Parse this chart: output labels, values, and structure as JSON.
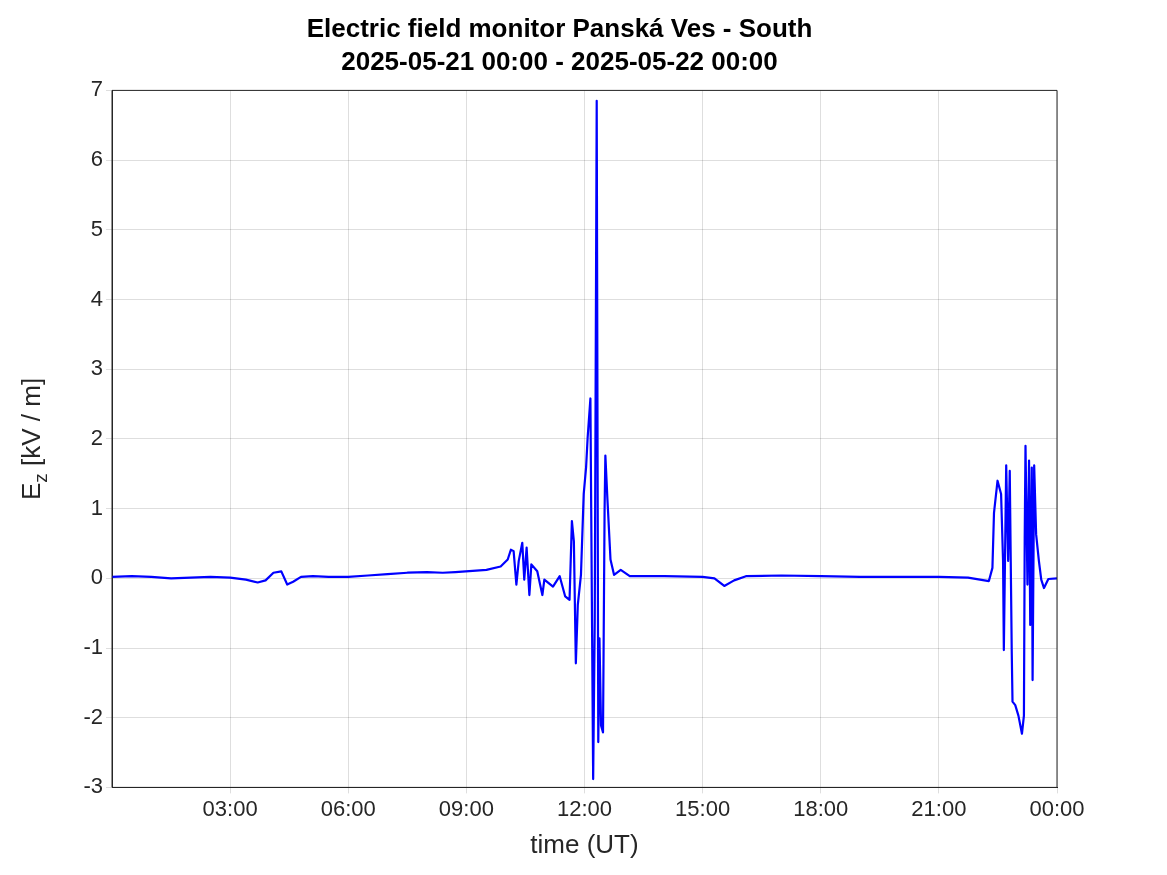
{
  "chart_data": {
    "type": "line",
    "title": "Electric field monitor Panská Ves - South",
    "subtitle": "2025-05-21 00:00 - 2025-05-22 00:00",
    "xlabel": "time (UT)",
    "ylabel": "E$_{z}$ [kV / m]",
    "xlim": [
      0,
      24
    ],
    "xticks": [
      {
        "value": 3,
        "label": "03:00"
      },
      {
        "value": 6,
        "label": "06:00"
      },
      {
        "value": 9,
        "label": "09:00"
      },
      {
        "value": 12,
        "label": "12:00"
      },
      {
        "value": 15,
        "label": "15:00"
      },
      {
        "value": 18,
        "label": "18:00"
      },
      {
        "value": 21,
        "label": "21:00"
      },
      {
        "value": 24,
        "label": "00:00"
      }
    ],
    "ylim": [
      -3,
      7
    ],
    "yticks": [
      -3,
      -2,
      -1,
      0,
      1,
      2,
      3,
      4,
      5,
      6,
      7
    ],
    "grid": true,
    "legend": false,
    "marker": "none",
    "line_style": "solid",
    "series": [
      {
        "color": "#0000ff",
        "x": [
          0,
          0.5,
          1,
          1.5,
          2,
          2.5,
          3,
          3.4,
          3.7,
          3.9,
          4.1,
          4.3,
          4.45,
          4.6,
          4.8,
          5.1,
          5.5,
          6,
          6.5,
          7,
          7.5,
          8,
          8.4,
          8.72,
          9.51,
          9.87,
          10.05,
          10.13,
          10.2,
          10.27,
          10.33,
          10.42,
          10.47,
          10.53,
          10.6,
          10.65,
          10.8,
          10.93,
          10.98,
          11.2,
          11.37,
          11.51,
          11.62,
          11.68,
          11.73,
          11.78,
          11.83,
          11.91,
          11.98,
          12.04,
          12.08,
          12.15,
          12.22,
          12.26,
          12.31,
          12.35,
          12.38,
          12.42,
          12.47,
          12.51,
          12.53,
          12.58,
          12.66,
          12.75,
          12.92,
          13.15,
          14.03,
          15.0,
          15.3,
          15.55,
          15.8,
          16.1,
          17,
          18,
          19,
          20,
          21,
          21.74,
          22.27,
          22.36,
          22.4,
          22.49,
          22.58,
          22.63,
          22.65,
          22.71,
          22.76,
          22.8,
          22.85,
          22.87,
          22.94,
          23.02,
          23.11,
          23.16,
          23.18,
          23.2,
          23.25,
          23.29,
          23.32,
          23.36,
          23.38,
          23.42,
          23.47,
          23.54,
          23.6,
          23.67,
          23.78,
          24
        ],
        "values": [
          0.02,
          0.03,
          0.02,
          0.0,
          0.01,
          0.02,
          0.01,
          -0.02,
          -0.06,
          -0.03,
          0.08,
          0.1,
          -0.09,
          -0.05,
          0.02,
          0.03,
          0.02,
          0.02,
          0.04,
          0.06,
          0.08,
          0.09,
          0.08,
          0.09,
          0.12,
          0.17,
          0.27,
          0.41,
          0.39,
          -0.09,
          0.25,
          0.51,
          -0.02,
          0.44,
          -0.24,
          0.2,
          0.1,
          -0.24,
          -0.02,
          -0.12,
          0.03,
          -0.26,
          -0.31,
          0.82,
          0.53,
          -1.22,
          -0.38,
          0.05,
          1.21,
          1.59,
          2.02,
          2.58,
          -2.88,
          -0.62,
          6.85,
          -2.35,
          -0.86,
          -2.11,
          -2.21,
          0.97,
          1.76,
          1.16,
          0.27,
          0.05,
          0.12,
          0.03,
          0.03,
          0.02,
          0.0,
          -0.11,
          -0.03,
          0.03,
          0.04,
          0.03,
          0.02,
          0.02,
          0.02,
          0.01,
          -0.04,
          0.15,
          0.94,
          1.4,
          1.21,
          0.25,
          -1.03,
          1.62,
          0.25,
          1.54,
          -1.03,
          -1.77,
          -1.82,
          -1.97,
          -2.23,
          -1.97,
          0.58,
          1.9,
          -0.09,
          1.69,
          -0.67,
          1.59,
          -1.46,
          1.62,
          0.63,
          0.25,
          -0.02,
          -0.14,
          -0.01,
          0.0
        ]
      }
    ]
  }
}
